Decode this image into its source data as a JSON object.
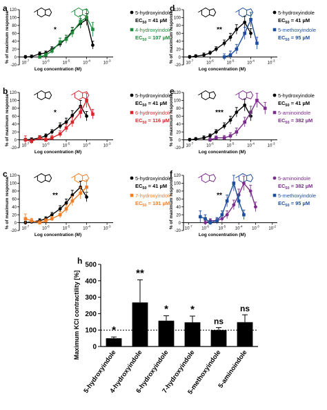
{
  "chart_data": [
    {
      "panel": "a",
      "type": "line",
      "ylabel": "% of maximum response",
      "xlabel": "Log concentration (M)",
      "ylim": [
        -20,
        120
      ],
      "yticks": [
        -20,
        0,
        20,
        40,
        60,
        80,
        100,
        120
      ],
      "xticks": [
        "10-7",
        "10-6",
        "10-5",
        "10-4",
        "10-3"
      ],
      "significance": "*",
      "series": [
        {
          "name": "5-hydroxyindole",
          "ec50": "EC50 = 41 µM",
          "color": "#000000",
          "x": [
            -7.0,
            -6.7,
            -6.3,
            -6.0,
            -5.7,
            -5.3,
            -5.0,
            -4.7,
            -4.3,
            -4.0,
            -3.7
          ],
          "y": [
            0,
            1,
            8,
            10,
            20,
            33,
            47,
            65,
            85,
            95,
            30
          ],
          "err": [
            4,
            4,
            5,
            5,
            6,
            8,
            8,
            10,
            12,
            15,
            10
          ]
        },
        {
          "name": "4-hydroxyindole",
          "ec50": "EC50 = 107 µM",
          "color": "#1e8a3a",
          "x": [
            -6.3,
            -6.0,
            -5.7,
            -5.3,
            -5.0,
            -4.7,
            -4.3,
            -4.0,
            -3.7
          ],
          "y": [
            0,
            5,
            15,
            38,
            45,
            62,
            90,
            100,
            70
          ],
          "err": [
            4,
            5,
            6,
            10,
            10,
            12,
            15,
            20,
            18
          ]
        }
      ]
    },
    {
      "panel": "b",
      "type": "line",
      "ylabel": "% of maximum response",
      "xlabel": "Log concentration (M)",
      "ylim": [
        -20,
        120
      ],
      "yticks": [
        -20,
        0,
        20,
        40,
        60,
        80,
        100,
        120
      ],
      "xticks": [
        "10-7",
        "10-6",
        "10-5",
        "10-4",
        "10-3"
      ],
      "significance": "*",
      "series": [
        {
          "name": "5-hydroxyindole",
          "ec50": "EC50 = 41 µM",
          "color": "#000000",
          "x": [
            -7.0,
            -6.7,
            -6.3,
            -6.0,
            -5.7,
            -5.3,
            -5.0,
            -4.7,
            -4.3,
            -4.0
          ],
          "y": [
            0,
            1,
            5,
            10,
            20,
            35,
            45,
            62,
            85,
            60
          ],
          "err": [
            4,
            4,
            5,
            5,
            6,
            8,
            10,
            12,
            15,
            12
          ]
        },
        {
          "name": "6-hydroxyindole",
          "ec50": "EC50 = 116 µM",
          "color": "#d9262b",
          "x": [
            -7.0,
            -6.7,
            -6.3,
            -6.0,
            -5.7,
            -5.3,
            -5.0,
            -4.7,
            -4.3,
            -4.0,
            -3.7
          ],
          "y": [
            0,
            -4,
            5,
            0,
            5,
            15,
            30,
            45,
            70,
            100,
            65
          ],
          "err": [
            10,
            6,
            6,
            5,
            6,
            8,
            10,
            12,
            15,
            18,
            12
          ]
        }
      ]
    },
    {
      "panel": "c",
      "type": "line",
      "ylabel": "% of maximum response",
      "xlabel": "Log concentration (M)",
      "ylim": [
        -20,
        120
      ],
      "yticks": [
        -20,
        0,
        20,
        40,
        60,
        80,
        100,
        120
      ],
      "xticks": [
        "10-7",
        "10-6",
        "10-5",
        "10-4",
        "10-3"
      ],
      "significance": "**",
      "series": [
        {
          "name": "5-hydroxyindole",
          "ec50": "EC50 = 41 µM",
          "color": "#000000",
          "x": [
            -7.0,
            -6.7,
            -6.3,
            -6.0,
            -5.7,
            -5.3,
            -5.0,
            -4.7,
            -4.3,
            -4.0
          ],
          "y": [
            0,
            2,
            5,
            10,
            20,
            35,
            50,
            70,
            90,
            65
          ],
          "err": [
            4,
            4,
            5,
            5,
            6,
            8,
            10,
            12,
            15,
            12
          ]
        },
        {
          "name": "7-hydroxyindole",
          "ec50": "EC50 = 101 µM",
          "color": "#f07e26",
          "x": [
            -7.0,
            -6.7,
            -6.3,
            -6.0,
            -5.7,
            -5.3,
            -5.0,
            -4.7,
            -4.3,
            -4.0
          ],
          "y": [
            10,
            5,
            0,
            5,
            10,
            20,
            35,
            55,
            75,
            90
          ],
          "err": [
            12,
            6,
            5,
            5,
            6,
            8,
            10,
            12,
            15,
            18
          ]
        }
      ]
    },
    {
      "panel": "d",
      "type": "line",
      "ylabel": "% of maximum response",
      "xlabel": "Log concentration (M)",
      "ylim": [
        -20,
        120
      ],
      "yticks": [
        -20,
        0,
        20,
        40,
        60,
        80,
        100,
        120
      ],
      "xticks": [
        "10-7",
        "10-6",
        "10-5",
        "10-4",
        "10-3"
      ],
      "significance": "**",
      "series": [
        {
          "name": "5-hydroxyindole",
          "ec50": "EC50 = 41 µM",
          "color": "#000000",
          "x": [
            -7.0,
            -6.7,
            -6.3,
            -6.0,
            -5.7,
            -5.3,
            -5.0,
            -4.7,
            -4.3,
            -4.0
          ],
          "y": [
            0,
            2,
            5,
            10,
            20,
            35,
            50,
            70,
            88,
            60
          ],
          "err": [
            4,
            4,
            5,
            5,
            6,
            8,
            10,
            12,
            15,
            12
          ]
        },
        {
          "name": "5-methoxyindole",
          "ec50": "EC50 = 95 µM",
          "color": "#1f4e9c",
          "x": [
            -5.3,
            -5.0,
            -4.7,
            -4.3,
            -4.0,
            -3.7
          ],
          "y": [
            0,
            5,
            20,
            60,
            95,
            35
          ],
          "err": [
            8,
            10,
            12,
            15,
            18,
            15
          ]
        }
      ]
    },
    {
      "panel": "e",
      "type": "line",
      "ylabel": "% of maximum response",
      "xlabel": "Log concentration (M)",
      "ylim": [
        -20,
        120
      ],
      "yticks": [
        -20,
        0,
        20,
        40,
        60,
        80,
        100,
        120
      ],
      "xticks": [
        "10-7",
        "10-6",
        "10-5",
        "10-4",
        "10-3"
      ],
      "significance": "***",
      "series": [
        {
          "name": "5-hydroxyindole",
          "ec50": "EC50 = 41 µM",
          "color": "#000000",
          "x": [
            -7.0,
            -6.7,
            -6.3,
            -6.0,
            -5.7,
            -5.3,
            -5.0,
            -4.7,
            -4.3,
            -4.0
          ],
          "y": [
            0,
            2,
            5,
            10,
            20,
            35,
            50,
            70,
            88,
            60
          ],
          "err": [
            4,
            4,
            5,
            5,
            6,
            8,
            10,
            12,
            15,
            12
          ]
        },
        {
          "name": "5-aminoindole",
          "ec50": "EC50 = 382 µM",
          "color": "#7b2d8b",
          "x": [
            -6.0,
            -5.7,
            -5.3,
            -5.0,
            -4.7,
            -4.3,
            -4.0,
            -3.7,
            -3.3
          ],
          "y": [
            0,
            5,
            5,
            10,
            20,
            45,
            70,
            100,
            80
          ],
          "err": [
            5,
            5,
            6,
            8,
            10,
            12,
            15,
            18,
            15
          ]
        }
      ]
    },
    {
      "panel": "f",
      "type": "line",
      "ylabel": "% of maximum response",
      "xlabel": "Log concentration (M)",
      "ylim": [
        -20,
        120
      ],
      "yticks": [
        -20,
        0,
        20,
        40,
        60,
        80,
        100,
        120
      ],
      "xticks": [
        "10-7",
        "10-6",
        "10-5",
        "10-4",
        "10-3",
        "10-2"
      ],
      "significance": "**",
      "series": [
        {
          "name": "5-aminoindole",
          "ec50": "EC50 = 382 µM",
          "color": "#7b2d8b",
          "x": [
            -6.0,
            -5.7,
            -5.3,
            -5.0,
            -4.7,
            -4.3,
            -4.0,
            -3.7,
            -3.3,
            -3.0
          ],
          "y": [
            0,
            5,
            5,
            10,
            20,
            45,
            70,
            100,
            80,
            40
          ],
          "err": [
            5,
            5,
            6,
            8,
            10,
            12,
            15,
            18,
            15,
            12
          ]
        },
        {
          "name": "5-methoxyindole",
          "ec50": "EC50 = 95 µM",
          "color": "#1f4e9c",
          "x": [
            -6.3,
            -6.0,
            -5.7,
            -5.3,
            -5.0,
            -4.7,
            -4.3,
            -4.0,
            -3.7
          ],
          "y": [
            15,
            10,
            0,
            5,
            20,
            55,
            100,
            55,
            20
          ],
          "err": [
            15,
            10,
            6,
            8,
            10,
            15,
            20,
            18,
            12
          ]
        }
      ]
    },
    {
      "panel": "h",
      "type": "bar",
      "ylabel": "Maximum KCl contractility [%]",
      "ylim": [
        0,
        500
      ],
      "yticks": [
        0,
        100,
        200,
        300,
        400,
        500
      ],
      "reference_line": 100,
      "categories": [
        "5-hydroxyindole",
        "4-hydroxyindole",
        "6-hydroxyindole",
        "7-hydroxyindole",
        "5-methoxyindole",
        "5-aminoindole"
      ],
      "values": [
        50,
        268,
        157,
        147,
        100,
        148
      ],
      "errors": [
        8,
        138,
        30,
        38,
        15,
        45
      ],
      "significance": [
        "*",
        "**",
        "*",
        "*",
        "ns",
        "ns"
      ]
    }
  ]
}
